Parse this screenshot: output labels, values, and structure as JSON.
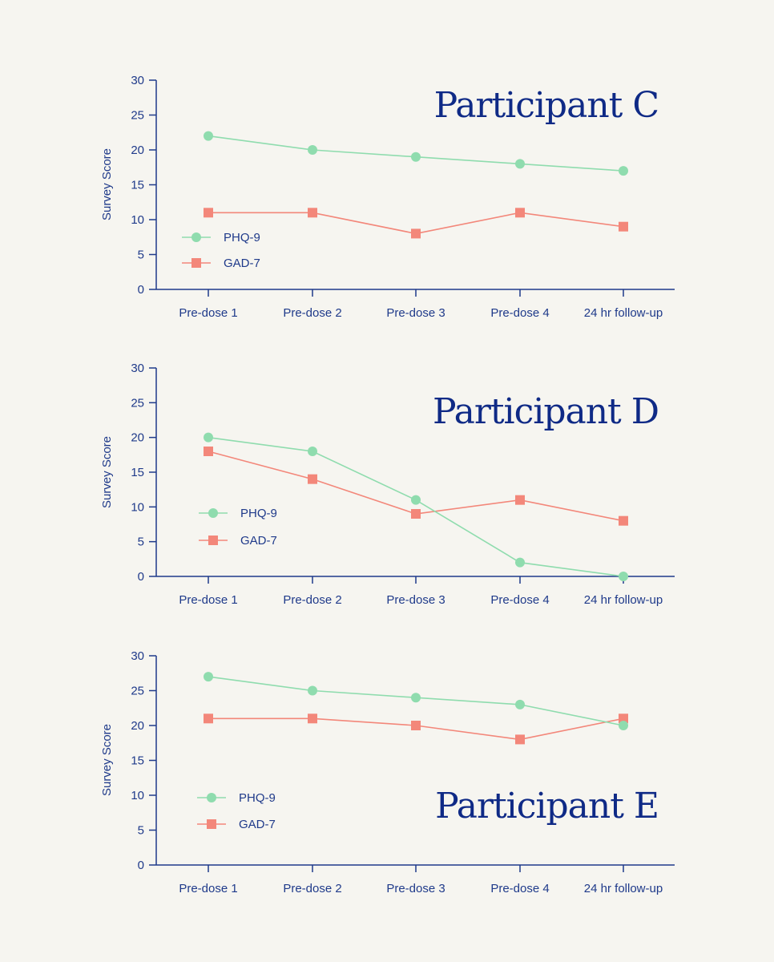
{
  "colors": {
    "background": "#f6f5f0",
    "axis": "#1f3a8a",
    "title": "#0f2a86",
    "phq9": "#8fdcae",
    "gad7": "#f3877a"
  },
  "chart_data": [
    {
      "type": "line",
      "title": "Participant C",
      "ylabel": "Survey Score",
      "xlabel": "",
      "categories": [
        "Pre-dose 1",
        "Pre-dose 2",
        "Pre-dose 3",
        "Pre-dose 4",
        "24 hr follow-up"
      ],
      "yticks": [
        "0",
        "5",
        "10",
        "15",
        "20",
        "25",
        "30"
      ],
      "ylim": [
        0,
        30
      ],
      "legend_position": "bottom-left",
      "series": [
        {
          "name": "PHQ-9",
          "marker": "circle",
          "values": [
            22,
            20,
            19,
            18,
            17
          ]
        },
        {
          "name": "GAD-7",
          "marker": "square",
          "values": [
            11,
            11,
            8,
            11,
            9
          ]
        }
      ]
    },
    {
      "type": "line",
      "title": "Participant D",
      "ylabel": "Survey Score",
      "xlabel": "",
      "categories": [
        "Pre-dose 1",
        "Pre-dose 2",
        "Pre-dose 3",
        "Pre-dose 4",
        "24 hr follow-up"
      ],
      "yticks": [
        "0",
        "5",
        "10",
        "15",
        "20",
        "25",
        "30"
      ],
      "ylim": [
        0,
        30
      ],
      "legend_position": "middle-left",
      "series": [
        {
          "name": "PHQ-9",
          "marker": "circle",
          "values": [
            20,
            18,
            11,
            2,
            0
          ]
        },
        {
          "name": "GAD-7",
          "marker": "square",
          "values": [
            18,
            14,
            9,
            11,
            8
          ]
        }
      ]
    },
    {
      "type": "line",
      "title": "Participant E",
      "ylabel": "Survey Score",
      "xlabel": "",
      "categories": [
        "Pre-dose 1",
        "Pre-dose 2",
        "Pre-dose 3",
        "Pre-dose 4",
        "24 hr follow-up"
      ],
      "yticks": [
        "0",
        "5",
        "10",
        "15",
        "20",
        "25",
        "30"
      ],
      "ylim": [
        0,
        30
      ],
      "legend_position": "bottom-left",
      "series": [
        {
          "name": "PHQ-9",
          "marker": "circle",
          "values": [
            27,
            25,
            24,
            23,
            20
          ]
        },
        {
          "name": "GAD-7",
          "marker": "square",
          "values": [
            21,
            21,
            20,
            18,
            21
          ]
        }
      ]
    }
  ]
}
